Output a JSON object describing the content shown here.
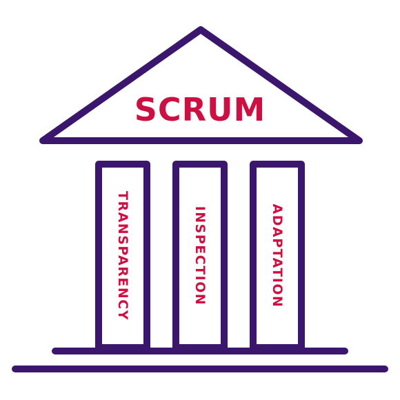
{
  "colors": {
    "structure": "#3a176d",
    "text": "#cc1142",
    "background": "#ffffff"
  },
  "roof": {
    "title": "SCRUM"
  },
  "pillars": [
    {
      "label": "TRANSPARENCY"
    },
    {
      "label": "INSPECTION"
    },
    {
      "label": "ADAPTATION"
    }
  ]
}
